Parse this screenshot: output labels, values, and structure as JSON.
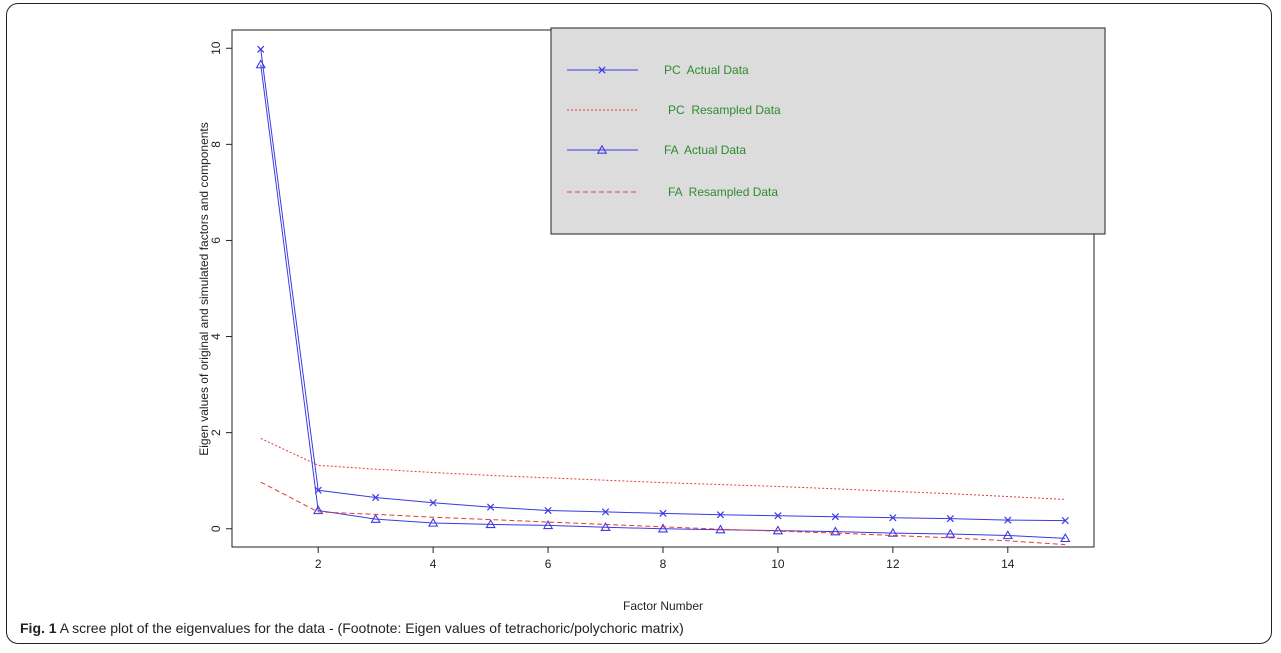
{
  "caption": {
    "label": "Fig. 1",
    "text": "A scree plot of the eigenvalues for the data - (Footnote: Eigen values of tetrachoric/polychoric matrix)"
  },
  "chart_data": {
    "type": "line",
    "xlabel": "Factor Number",
    "ylabel": "Eigen values of original  and simulated factors and components",
    "xlim": [
      0.5,
      15.5
    ],
    "ylim": [
      -0.38,
      10.38
    ],
    "x_ticks": [
      2,
      4,
      6,
      8,
      10,
      12,
      14
    ],
    "y_ticks": [
      0,
      2,
      4,
      6,
      8,
      10
    ],
    "grid": false,
    "legend_position": "top-right",
    "legend_background": "#dcdcdc",
    "x": [
      1,
      2,
      3,
      4,
      5,
      6,
      7,
      8,
      9,
      10,
      11,
      12,
      13,
      14,
      15
    ],
    "series": [
      {
        "name": "PC  Actual Data",
        "color": "#3a3ae6",
        "line": "solid",
        "marker": "x",
        "values": [
          9.98,
          0.8,
          0.65,
          0.54,
          0.45,
          0.38,
          0.35,
          0.32,
          0.29,
          0.27,
          0.25,
          0.23,
          0.21,
          0.18,
          0.17
        ]
      },
      {
        "name": "PC  Resampled Data",
        "color": "#e63a3a",
        "line": "dotted",
        "marker": "none",
        "values": [
          1.88,
          1.32,
          1.24,
          1.17,
          1.11,
          1.06,
          1.01,
          0.96,
          0.92,
          0.88,
          0.83,
          0.78,
          0.73,
          0.67,
          0.61
        ]
      },
      {
        "name": "FA  Actual Data",
        "color": "#3a3ae6",
        "line": "solid",
        "marker": "triangle",
        "values": [
          9.66,
          0.38,
          0.2,
          0.12,
          0.09,
          0.07,
          0.03,
          0.0,
          -0.02,
          -0.04,
          -0.06,
          -0.09,
          -0.11,
          -0.14,
          -0.2
        ]
      },
      {
        "name": "FA  Resampled Data",
        "color": "#e63a3a",
        "line": "dashed",
        "marker": "none",
        "values": [
          0.97,
          0.35,
          0.3,
          0.24,
          0.19,
          0.14,
          0.09,
          0.04,
          -0.01,
          -0.05,
          -0.09,
          -0.14,
          -0.19,
          -0.25,
          -0.33
        ]
      }
    ]
  }
}
